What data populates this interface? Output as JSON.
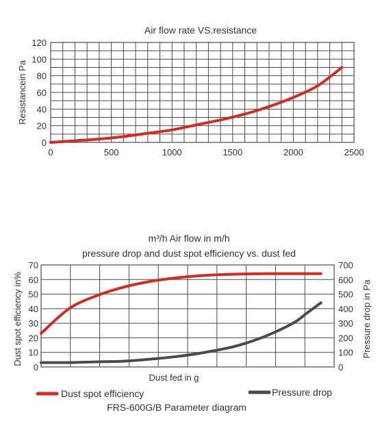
{
  "chart_data": [
    {
      "type": "line",
      "title": "Air flow rate VS.resistance",
      "xlabel": "",
      "ylabel": "Resistancein Pa",
      "xlim": [
        0,
        2500
      ],
      "ylim": [
        0,
        120
      ],
      "x_ticks": [
        "0",
        "500",
        "1000",
        "1500",
        "2000",
        "2500"
      ],
      "y_ticks": [
        "0",
        "20",
        "40",
        "60",
        "80",
        "100",
        "120"
      ],
      "grid": true,
      "series": [
        {
          "color": "#d42a20",
          "x": [
            0,
            200,
            400,
            600,
            800,
            1000,
            1200,
            1400,
            1600,
            1800,
            2000,
            2200,
            2400
          ],
          "y": [
            0,
            2,
            4,
            7,
            11,
            15,
            21,
            27,
            34,
            43,
            54,
            68,
            90
          ]
        }
      ]
    },
    {
      "type": "line",
      "title_line1": "m³/h  Air flow in m/h",
      "title_line2": "pressure drop and dust spot efficiency vs. dust fed",
      "xlabel": "Dust fed in g",
      "ylabel_left": "Dust spot efficiency in%",
      "ylabel_right": "Pressure drop in Pa",
      "ylim_left": [
        0,
        70
      ],
      "ylim_right": [
        0,
        700
      ],
      "y_ticks_left": [
        "0",
        "10",
        "20",
        "30",
        "40",
        "50",
        "60",
        "70"
      ],
      "y_ticks_right": [
        "0",
        "100",
        "200",
        "300",
        "400",
        "500",
        "600",
        "700"
      ],
      "x_ticks": [],
      "grid": true,
      "legend_position": "bottom",
      "series": [
        {
          "name": "Dust spot efficiency",
          "axis": "left",
          "color": "#d42a20",
          "x": [
            0,
            1,
            2,
            3,
            4,
            5,
            6,
            7,
            8,
            9,
            10
          ],
          "y": [
            23,
            40,
            49,
            55,
            59,
            61.5,
            63,
            63.7,
            64,
            64,
            64
          ]
        },
        {
          "name": "Pressure drop",
          "axis": "right",
          "color": "#4a4a4a",
          "x": [
            0,
            1,
            2,
            3,
            4,
            5,
            6,
            7,
            8,
            9,
            9.5,
            10
          ],
          "y": [
            30,
            30,
            35,
            40,
            55,
            75,
            105,
            145,
            210,
            300,
            370,
            440
          ]
        }
      ]
    }
  ],
  "footer": "FRS-600G/B Parameter diagram"
}
